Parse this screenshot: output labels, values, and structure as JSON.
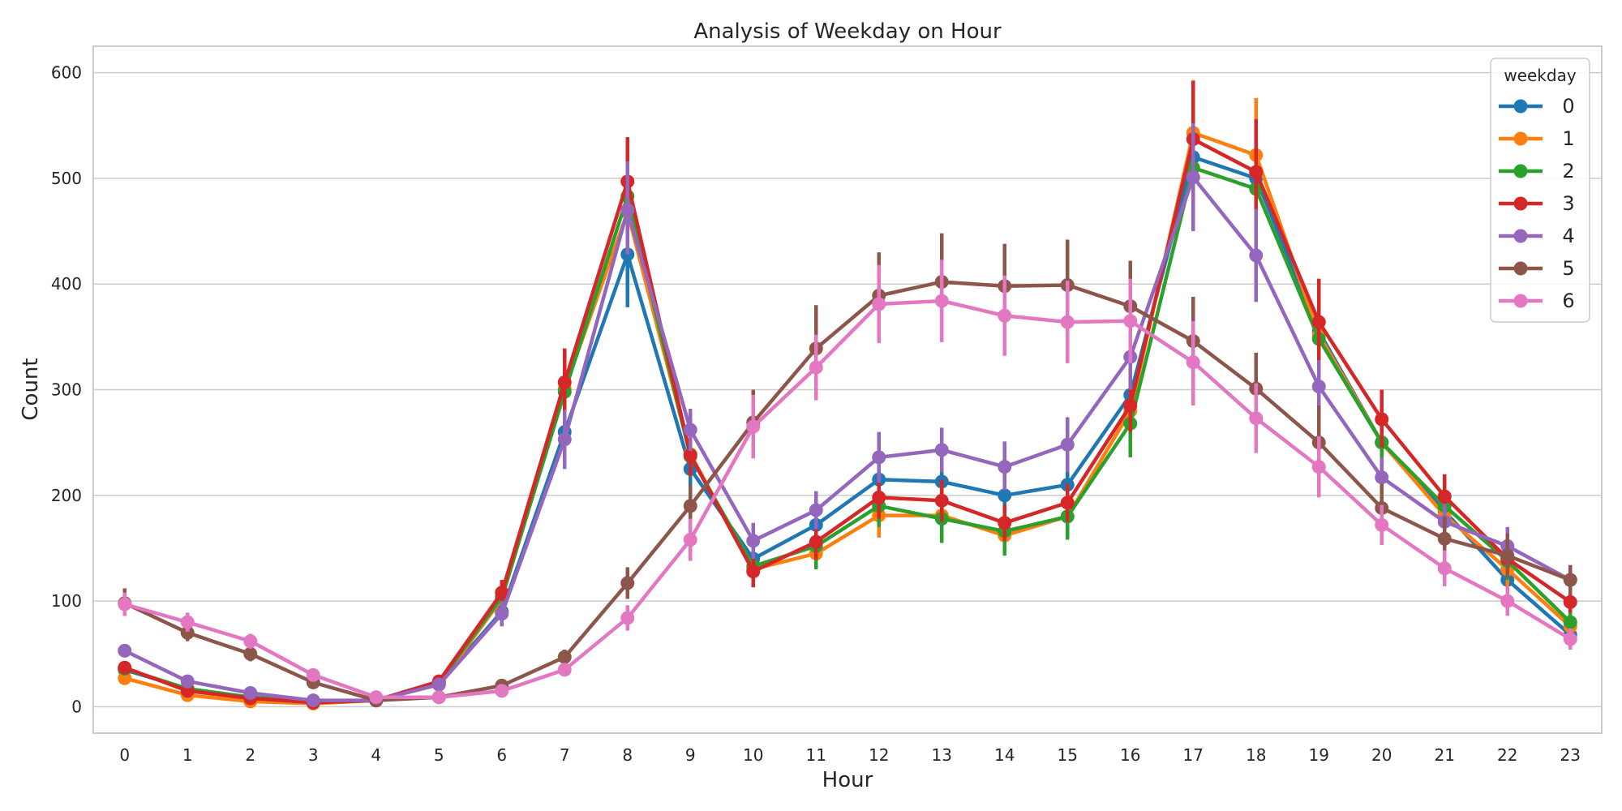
{
  "chart_data": {
    "type": "line",
    "title": "Analysis of Weekday on Hour",
    "xlabel": "Hour",
    "ylabel": "Count",
    "x": [
      0,
      1,
      2,
      3,
      4,
      5,
      6,
      7,
      8,
      9,
      10,
      11,
      12,
      13,
      14,
      15,
      16,
      17,
      18,
      19,
      20,
      21,
      22,
      23
    ],
    "xlim": [
      -0.5,
      23.5
    ],
    "ylim": [
      -25,
      625
    ],
    "yticks": [
      0,
      100,
      200,
      300,
      400,
      500,
      600
    ],
    "grid": true,
    "legend": {
      "title": "weekday",
      "placement": "top-right"
    },
    "series": [
      {
        "name": "0",
        "color": "#1f77b4",
        "values": [
          35,
          17,
          9,
          5,
          6,
          22,
          90,
          260,
          428,
          225,
          140,
          172,
          215,
          213,
          200,
          210,
          295,
          520,
          500,
          355,
          250,
          185,
          120,
          68
        ],
        "ci": [
          [
            30,
            40
          ],
          [
            13,
            21
          ],
          [
            6,
            12
          ],
          [
            3,
            7
          ],
          [
            4,
            8
          ],
          [
            18,
            26
          ],
          [
            78,
            102
          ],
          [
            235,
            285
          ],
          [
            378,
            478
          ],
          [
            205,
            245
          ],
          [
            125,
            155
          ],
          [
            155,
            189
          ],
          [
            195,
            235
          ],
          [
            193,
            233
          ],
          [
            182,
            218
          ],
          [
            190,
            230
          ],
          [
            270,
            320
          ],
          [
            470,
            570
          ],
          [
            455,
            545
          ],
          [
            320,
            390
          ],
          [
            228,
            272
          ],
          [
            165,
            205
          ],
          [
            105,
            135
          ],
          [
            58,
            78
          ]
        ]
      },
      {
        "name": "1",
        "color": "#ff7f0e",
        "values": [
          27,
          11,
          5,
          3,
          6,
          21,
          102,
          301,
          468,
          239,
          130,
          145,
          181,
          181,
          162,
          180,
          280,
          543,
          522,
          352,
          250,
          181,
          130,
          76
        ],
        "ci": [
          [
            22,
            32
          ],
          [
            8,
            14
          ],
          [
            3,
            7
          ],
          [
            1,
            5
          ],
          [
            4,
            8
          ],
          [
            17,
            25
          ],
          [
            90,
            114
          ],
          [
            275,
            327
          ],
          [
            430,
            506
          ],
          [
            219,
            259
          ],
          [
            115,
            145
          ],
          [
            130,
            160
          ],
          [
            160,
            202
          ],
          [
            162,
            200
          ],
          [
            145,
            179
          ],
          [
            162,
            198
          ],
          [
            255,
            305
          ],
          [
            493,
            593
          ],
          [
            470,
            576
          ],
          [
            320,
            384
          ],
          [
            228,
            272
          ],
          [
            160,
            202
          ],
          [
            113,
            147
          ],
          [
            66,
            86
          ]
        ]
      },
      {
        "name": "2",
        "color": "#2ca02c",
        "values": [
          36,
          17,
          9,
          4,
          6,
          23,
          104,
          298,
          483,
          237,
          133,
          152,
          190,
          178,
          166,
          180,
          268,
          510,
          490,
          348,
          250,
          190,
          138,
          80
        ],
        "ci": [
          [
            31,
            41
          ],
          [
            13,
            21
          ],
          [
            6,
            12
          ],
          [
            2,
            6
          ],
          [
            4,
            8
          ],
          [
            19,
            27
          ],
          [
            92,
            116
          ],
          [
            273,
            323
          ],
          [
            448,
            518
          ],
          [
            217,
            257
          ],
          [
            118,
            148
          ],
          [
            130,
            174
          ],
          [
            170,
            210
          ],
          [
            155,
            201
          ],
          [
            143,
            189
          ],
          [
            158,
            202
          ],
          [
            236,
            300
          ],
          [
            470,
            550
          ],
          [
            450,
            530
          ],
          [
            318,
            378
          ],
          [
            228,
            272
          ],
          [
            170,
            210
          ],
          [
            120,
            156
          ],
          [
            70,
            90
          ]
        ]
      },
      {
        "name": "3",
        "color": "#d62728",
        "values": [
          37,
          15,
          8,
          4,
          6,
          24,
          108,
          307,
          497,
          238,
          128,
          156,
          198,
          195,
          174,
          193,
          285,
          537,
          506,
          364,
          272,
          199,
          140,
          99
        ],
        "ci": [
          [
            32,
            42
          ],
          [
            11,
            19
          ],
          [
            5,
            11
          ],
          [
            2,
            6
          ],
          [
            4,
            8
          ],
          [
            20,
            28
          ],
          [
            96,
            120
          ],
          [
            275,
            339
          ],
          [
            455,
            539
          ],
          [
            218,
            258
          ],
          [
            113,
            143
          ],
          [
            139,
            173
          ],
          [
            178,
            218
          ],
          [
            175,
            215
          ],
          [
            157,
            191
          ],
          [
            175,
            211
          ],
          [
            260,
            310
          ],
          [
            482,
            592
          ],
          [
            455,
            556
          ],
          [
            325,
            405
          ],
          [
            245,
            300
          ],
          [
            178,
            220
          ],
          [
            123,
            157
          ],
          [
            89,
            109
          ]
        ]
      },
      {
        "name": "4",
        "color": "#9467bd",
        "values": [
          53,
          24,
          13,
          6,
          6,
          21,
          88,
          253,
          470,
          262,
          157,
          186,
          236,
          243,
          227,
          248,
          331,
          501,
          427,
          303,
          217,
          175,
          152,
          120
        ],
        "ci": [
          [
            47,
            59
          ],
          [
            20,
            28
          ],
          [
            10,
            16
          ],
          [
            4,
            8
          ],
          [
            4,
            8
          ],
          [
            17,
            25
          ],
          [
            76,
            100
          ],
          [
            225,
            281
          ],
          [
            428,
            516
          ],
          [
            242,
            282
          ],
          [
            140,
            174
          ],
          [
            168,
            204
          ],
          [
            212,
            260
          ],
          [
            222,
            264
          ],
          [
            205,
            251
          ],
          [
            222,
            274
          ],
          [
            300,
            362
          ],
          [
            450,
            552
          ],
          [
            383,
            471
          ],
          [
            278,
            328
          ],
          [
            198,
            236
          ],
          [
            158,
            192
          ],
          [
            134,
            170
          ],
          [
            106,
            134
          ]
        ]
      },
      {
        "name": "5",
        "color": "#8c564b",
        "values": [
          98,
          70,
          50,
          23,
          6,
          9,
          20,
          47,
          117,
          190,
          269,
          339,
          389,
          402,
          398,
          399,
          379,
          346,
          301,
          250,
          188,
          159,
          143,
          120
        ],
        "ci": [
          [
            86,
            112
          ],
          [
            62,
            78
          ],
          [
            43,
            57
          ],
          [
            18,
            28
          ],
          [
            4,
            8
          ],
          [
            7,
            11
          ],
          [
            16,
            24
          ],
          [
            40,
            54
          ],
          [
            102,
            132
          ],
          [
            170,
            210
          ],
          [
            240,
            300
          ],
          [
            300,
            380
          ],
          [
            348,
            430
          ],
          [
            358,
            448
          ],
          [
            358,
            438
          ],
          [
            358,
            442
          ],
          [
            338,
            422
          ],
          [
            305,
            388
          ],
          [
            265,
            335
          ],
          [
            215,
            285
          ],
          [
            165,
            211
          ],
          [
            138,
            180
          ],
          [
            122,
            164
          ],
          [
            106,
            134
          ]
        ]
      },
      {
        "name": "6",
        "color": "#e377c2",
        "values": [
          97,
          80,
          62,
          30,
          9,
          9,
          15,
          35,
          84,
          158,
          265,
          321,
          381,
          384,
          370,
          364,
          365,
          326,
          273,
          227,
          172,
          131,
          100,
          64
        ],
        "ci": [
          [
            86,
            108
          ],
          [
            71,
            89
          ],
          [
            55,
            69
          ],
          [
            25,
            35
          ],
          [
            7,
            11
          ],
          [
            7,
            11
          ],
          [
            12,
            18
          ],
          [
            30,
            40
          ],
          [
            72,
            96
          ],
          [
            138,
            178
          ],
          [
            235,
            295
          ],
          [
            290,
            352
          ],
          [
            344,
            418
          ],
          [
            345,
            423
          ],
          [
            332,
            408
          ],
          [
            325,
            403
          ],
          [
            325,
            405
          ],
          [
            285,
            365
          ],
          [
            240,
            306
          ],
          [
            198,
            256
          ],
          [
            153,
            191
          ],
          [
            114,
            148
          ],
          [
            86,
            114
          ],
          [
            54,
            74
          ]
        ]
      }
    ]
  }
}
